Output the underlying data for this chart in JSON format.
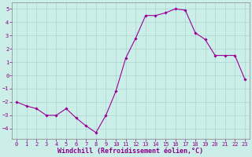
{
  "x": [
    0,
    1,
    2,
    3,
    4,
    5,
    6,
    7,
    8,
    9,
    10,
    11,
    12,
    13,
    14,
    15,
    16,
    17,
    18,
    19,
    20,
    21,
    22,
    23
  ],
  "y": [
    -2.0,
    -2.3,
    -2.5,
    -3.0,
    -3.0,
    -2.5,
    -3.2,
    -3.8,
    -4.3,
    -3.0,
    -1.2,
    1.3,
    2.8,
    4.5,
    4.5,
    4.7,
    5.0,
    4.9,
    3.2,
    2.7,
    1.5,
    1.5,
    1.5,
    -0.3
  ],
  "line_color": "#990099",
  "marker": "D",
  "marker_size": 1.8,
  "bg_color": "#cceee8",
  "grid_color": "#aad4ce",
  "xlabel": "Windchill (Refroidissement éolien,°C)",
  "ylim": [
    -4.8,
    5.5
  ],
  "yticks": [
    -4,
    -3,
    -2,
    -1,
    0,
    1,
    2,
    3,
    4,
    5
  ],
  "xticks": [
    0,
    1,
    2,
    3,
    4,
    5,
    6,
    7,
    8,
    9,
    10,
    11,
    12,
    13,
    14,
    15,
    16,
    17,
    18,
    19,
    20,
    21,
    22,
    23
  ],
  "tick_fontsize": 5.0,
  "xlabel_fontsize": 6.0,
  "spine_color": "#888888",
  "label_color": "#880088"
}
